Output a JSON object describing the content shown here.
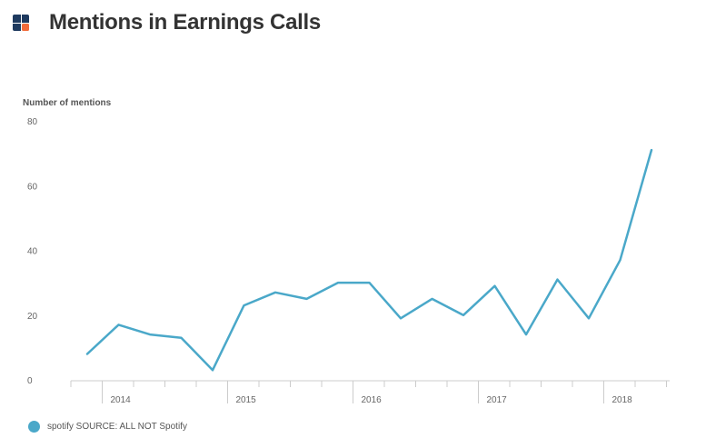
{
  "header": {
    "title": "Mentions in Earnings Calls",
    "logo_icon": "brand-logo-icon"
  },
  "colors": {
    "series": "#4aa8c9",
    "logo_dark": "#1e3a5f",
    "logo_accent": "#f26b3a",
    "axis": "#cccccc",
    "tick_text": "#666666"
  },
  "chart_data": {
    "type": "line",
    "title": "Mentions in Earnings Calls",
    "ylabel": "Number of mentions",
    "xlabel": "",
    "ylim": [
      0,
      80
    ],
    "yticks": [
      0,
      20,
      40,
      60,
      80
    ],
    "grid": false,
    "legend": "bottom-left",
    "x_tick_labels": [
      "2014",
      "2015",
      "2016",
      "2017",
      "2018"
    ],
    "series": [
      {
        "name": "spotify SOURCE: ALL NOT Spotify",
        "x": [
          "2013-Q4",
          "2014-Q1",
          "2014-Q2",
          "2014-Q3",
          "2014-Q4",
          "2015-Q1",
          "2015-Q2",
          "2015-Q3",
          "2015-Q4",
          "2016-Q1",
          "2016-Q2",
          "2016-Q3",
          "2016-Q4",
          "2017-Q1",
          "2017-Q2",
          "2017-Q3",
          "2017-Q4",
          "2018-Q1",
          "2018-Q2"
        ],
        "values": [
          8,
          17,
          14,
          13,
          3,
          23,
          27,
          25,
          30,
          30,
          19,
          25,
          20,
          29,
          14,
          31,
          19,
          37,
          71
        ]
      }
    ]
  },
  "legend": {
    "label": "spotify SOURCE: ALL NOT Spotify"
  }
}
